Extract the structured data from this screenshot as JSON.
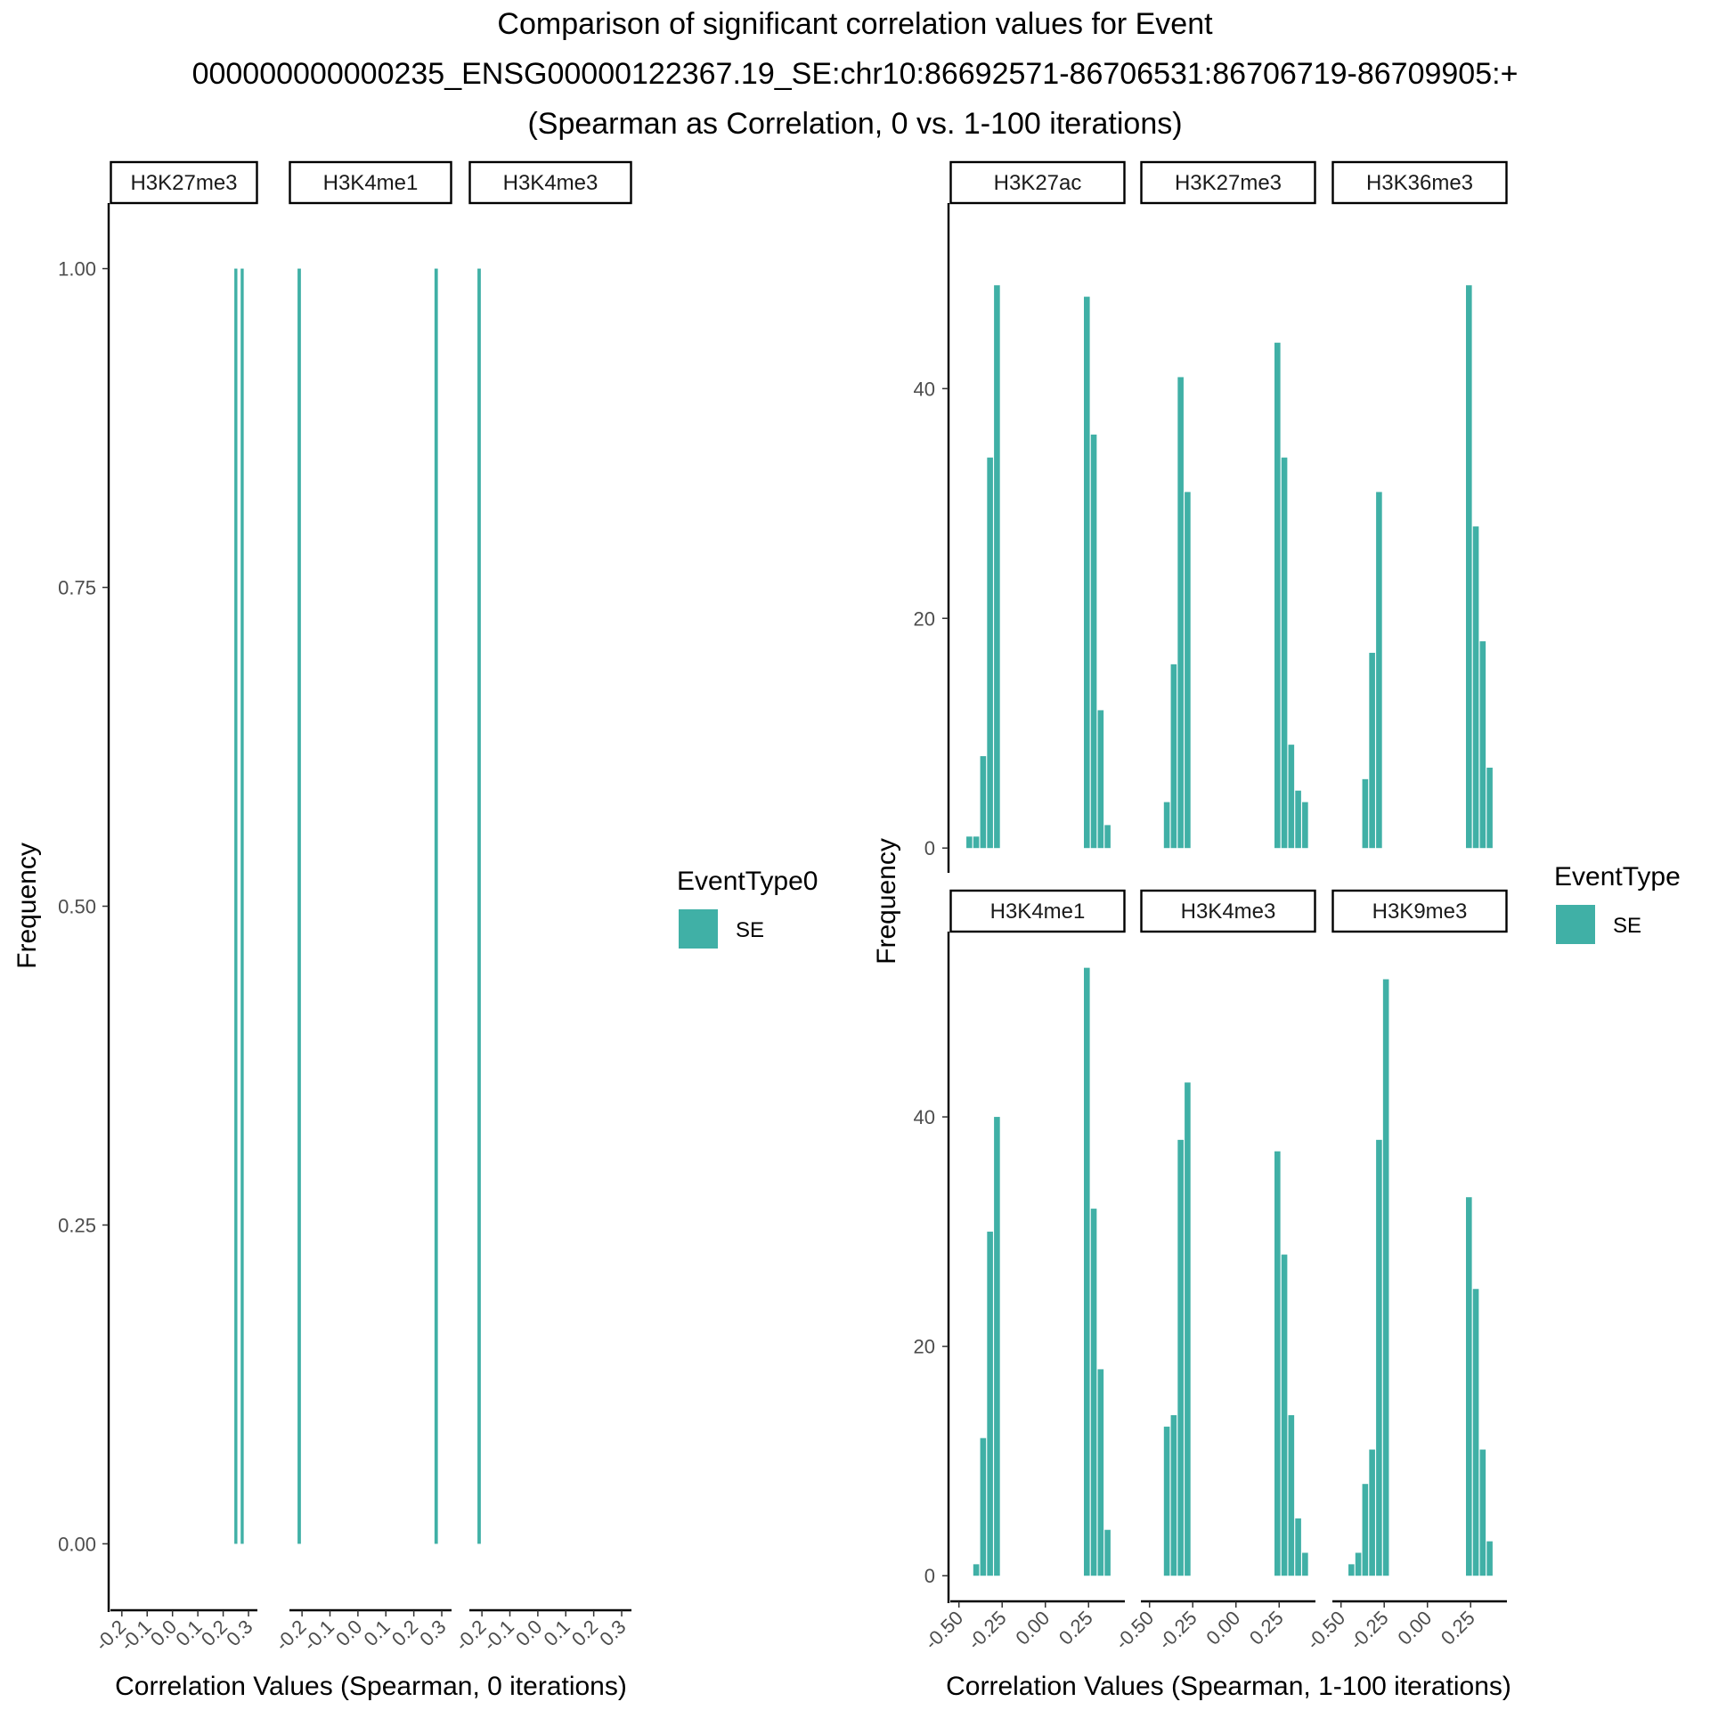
{
  "title_lines": [
    "Comparison of significant correlation values for Event",
    "000000000000235_ENSG00000122367.19_SE:chr10:86692571-86706531:86706719-86709905:+",
    "(Spearman as Correlation, 0 vs. 1-100 iterations)"
  ],
  "colors": {
    "bar": "#40b0a6",
    "axis": "#000000",
    "tick_text": "#4d4d4d"
  },
  "chart_data": [
    {
      "type": "bar",
      "panel": "left",
      "xlabel": "Correlation Values (Spearman, 0 iterations)",
      "ylabel": "Frequency",
      "ylim": [
        -0.05,
        1.05
      ],
      "xlim": [
        -0.245,
        0.335
      ],
      "y_ticks": [
        0.0,
        0.25,
        0.5,
        0.75,
        1.0
      ],
      "y_tick_labels": [
        "0.00",
        "0.25",
        "0.50",
        "0.75",
        "1.00"
      ],
      "x_ticks": [
        -0.2,
        -0.1,
        0.0,
        0.1,
        0.2,
        0.3
      ],
      "x_tick_labels": [
        "-0.2",
        "-0.1",
        "0.0",
        "0.1",
        "0.2",
        "0.3"
      ],
      "bar_width": 0.012,
      "legend": {
        "title": "EventType0",
        "label": "SE"
      },
      "facets": [
        {
          "label": "H3K27me3",
          "bars": [
            {
              "x": 0.25,
              "y": 1
            },
            {
              "x": 0.275,
              "y": 1
            }
          ]
        },
        {
          "label": "H3K4me1",
          "bars": [
            {
              "x": -0.21,
              "y": 1
            },
            {
              "x": 0.28,
              "y": 1
            }
          ]
        },
        {
          "label": "H3K4me3",
          "bars": [
            {
              "x": -0.21,
              "y": 1
            }
          ]
        }
      ]
    },
    {
      "type": "bar",
      "panel": "right-top",
      "ylabel": "Frequency",
      "ylim": [
        -2,
        56
      ],
      "xlim": [
        -0.55,
        0.46
      ],
      "y_ticks": [
        0,
        20,
        40
      ],
      "y_tick_labels": [
        "0",
        "20",
        "40"
      ],
      "bar_width": 0.034,
      "facets": [
        {
          "label": "H3K27ac",
          "bars": [
            {
              "x": -0.44,
              "y": 1
            },
            {
              "x": -0.4,
              "y": 1
            },
            {
              "x": -0.36,
              "y": 8
            },
            {
              "x": -0.32,
              "y": 34
            },
            {
              "x": -0.28,
              "y": 49
            },
            {
              "x": 0.24,
              "y": 48
            },
            {
              "x": 0.28,
              "y": 36
            },
            {
              "x": 0.32,
              "y": 12
            },
            {
              "x": 0.36,
              "y": 2
            }
          ]
        },
        {
          "label": "H3K27me3",
          "bars": [
            {
              "x": -0.4,
              "y": 4
            },
            {
              "x": -0.36,
              "y": 16
            },
            {
              "x": -0.32,
              "y": 41
            },
            {
              "x": -0.28,
              "y": 31
            },
            {
              "x": 0.24,
              "y": 44
            },
            {
              "x": 0.28,
              "y": 34
            },
            {
              "x": 0.32,
              "y": 9
            },
            {
              "x": 0.36,
              "y": 5
            },
            {
              "x": 0.4,
              "y": 4
            }
          ]
        },
        {
          "label": "H3K36me3",
          "bars": [
            {
              "x": -0.36,
              "y": 6
            },
            {
              "x": -0.32,
              "y": 17
            },
            {
              "x": -0.28,
              "y": 31
            },
            {
              "x": 0.24,
              "y": 49
            },
            {
              "x": 0.28,
              "y": 28
            },
            {
              "x": 0.32,
              "y": 18
            },
            {
              "x": 0.36,
              "y": 7
            }
          ]
        }
      ]
    },
    {
      "type": "bar",
      "panel": "right-bottom",
      "xlabel": "Correlation Values (Spearman, 1-100 iterations)",
      "ylabel": "Frequency",
      "ylim": [
        -2,
        56
      ],
      "xlim": [
        -0.55,
        0.46
      ],
      "y_ticks": [
        0,
        20,
        40
      ],
      "y_tick_labels": [
        "0",
        "20",
        "40"
      ],
      "x_ticks": [
        -0.5,
        -0.25,
        0.0,
        0.25
      ],
      "x_tick_labels": [
        "-0.50",
        "-0.25",
        "0.00",
        "0.25"
      ],
      "bar_width": 0.034,
      "legend": {
        "title": "EventType",
        "label": "SE"
      },
      "facets": [
        {
          "label": "H3K4me1",
          "bars": [
            {
              "x": -0.4,
              "y": 1
            },
            {
              "x": -0.36,
              "y": 12
            },
            {
              "x": -0.32,
              "y": 30
            },
            {
              "x": -0.28,
              "y": 40
            },
            {
              "x": 0.24,
              "y": 53
            },
            {
              "x": 0.28,
              "y": 32
            },
            {
              "x": 0.32,
              "y": 18
            },
            {
              "x": 0.36,
              "y": 4
            }
          ]
        },
        {
          "label": "H3K4me3",
          "bars": [
            {
              "x": -0.4,
              "y": 13
            },
            {
              "x": -0.36,
              "y": 14
            },
            {
              "x": -0.32,
              "y": 38
            },
            {
              "x": -0.28,
              "y": 43
            },
            {
              "x": 0.24,
              "y": 37
            },
            {
              "x": 0.28,
              "y": 28
            },
            {
              "x": 0.32,
              "y": 14
            },
            {
              "x": 0.36,
              "y": 5
            },
            {
              "x": 0.4,
              "y": 2
            }
          ]
        },
        {
          "label": "H3K9me3",
          "bars": [
            {
              "x": -0.44,
              "y": 1
            },
            {
              "x": -0.4,
              "y": 2
            },
            {
              "x": -0.36,
              "y": 8
            },
            {
              "x": -0.32,
              "y": 11
            },
            {
              "x": -0.28,
              "y": 38
            },
            {
              "x": -0.24,
              "y": 52
            },
            {
              "x": 0.24,
              "y": 33
            },
            {
              "x": 0.28,
              "y": 25
            },
            {
              "x": 0.32,
              "y": 11
            },
            {
              "x": 0.36,
              "y": 3
            }
          ]
        }
      ]
    }
  ]
}
